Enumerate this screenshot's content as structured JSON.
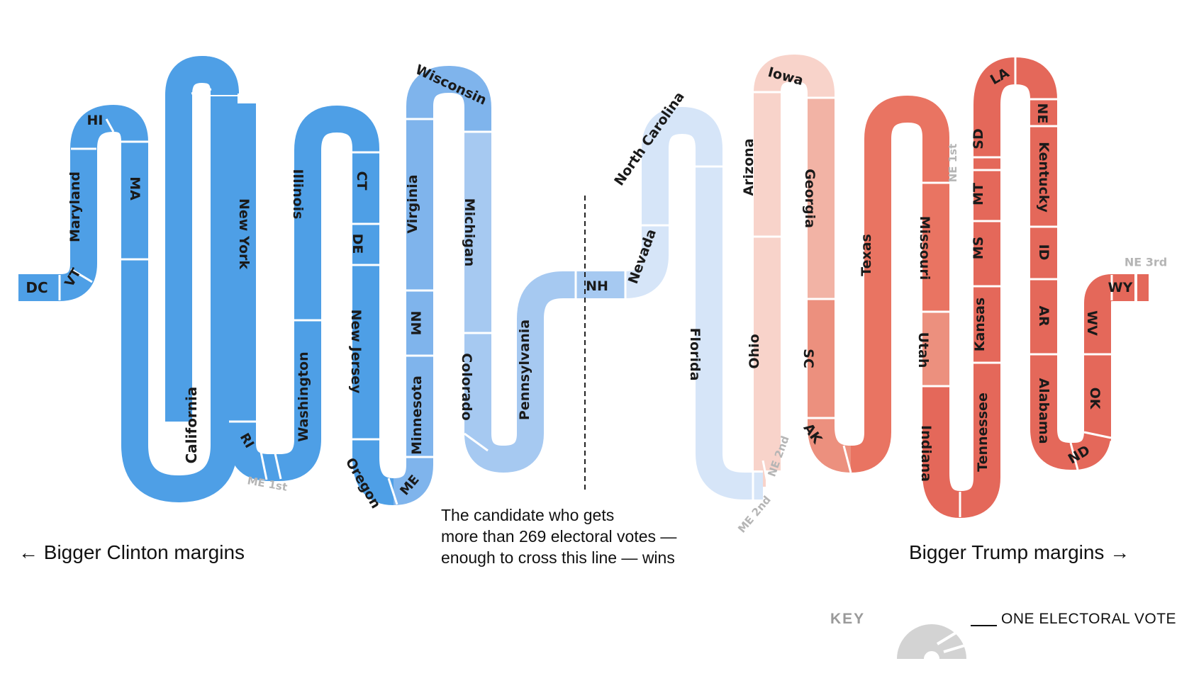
{
  "colors": {
    "clinton_dark": "#4e9fe6",
    "clinton_mid": "#7fb4ec",
    "clinton_light": "#a6c9f1",
    "clinton_pale": "#d6e5f8",
    "trump_pale": "#f8d3ca",
    "trump_light": "#f2b3a5",
    "trump_mid": "#ec907e",
    "trump_dark": "#e97462",
    "trump_deep": "#e4685a",
    "key_gray": "#d3d3d3",
    "ghost_label": "#b5b5b5"
  },
  "segments": [
    {
      "id": "dc",
      "label": "DC",
      "group": "clinton_dark"
    },
    {
      "id": "vt",
      "label": "VT",
      "group": "clinton_dark"
    },
    {
      "id": "md",
      "label": "Maryland",
      "group": "clinton_dark"
    },
    {
      "id": "hi",
      "label": "HI",
      "group": "clinton_dark"
    },
    {
      "id": "ma",
      "label": "MA",
      "group": "clinton_dark"
    },
    {
      "id": "ca",
      "label": "California",
      "group": "clinton_dark"
    },
    {
      "id": "ny",
      "label": "New York",
      "group": "clinton_dark"
    },
    {
      "id": "ri",
      "label": "RI",
      "group": "clinton_dark"
    },
    {
      "id": "me1",
      "label": "ME 1st",
      "group": "clinton_dark"
    },
    {
      "id": "wa",
      "label": "Washington",
      "group": "clinton_dark"
    },
    {
      "id": "il",
      "label": "Illinois",
      "group": "clinton_dark"
    },
    {
      "id": "ct",
      "label": "CT",
      "group": "clinton_dark"
    },
    {
      "id": "de",
      "label": "DE",
      "group": "clinton_dark"
    },
    {
      "id": "nj",
      "label": "New Jersey",
      "group": "clinton_dark"
    },
    {
      "id": "or",
      "label": "Oregon",
      "group": "clinton_dark"
    },
    {
      "id": "me",
      "label": "ME",
      "group": "clinton_mid"
    },
    {
      "id": "mn",
      "label": "Minnesota",
      "group": "clinton_mid"
    },
    {
      "id": "nm",
      "label": "NM",
      "group": "clinton_mid"
    },
    {
      "id": "va",
      "label": "Virginia",
      "group": "clinton_mid"
    },
    {
      "id": "wi",
      "label": "Wisconsin",
      "group": "clinton_mid"
    },
    {
      "id": "mi",
      "label": "Michigan",
      "group": "clinton_light"
    },
    {
      "id": "co",
      "label": "Colorado",
      "group": "clinton_light"
    },
    {
      "id": "pa",
      "label": "Pennsylvania",
      "group": "clinton_light"
    },
    {
      "id": "nh",
      "label": "NH",
      "group": "clinton_light"
    },
    {
      "id": "nv",
      "label": "Nevada",
      "group": "clinton_pale"
    },
    {
      "id": "nc",
      "label": "North Carolina",
      "group": "clinton_pale"
    },
    {
      "id": "fl",
      "label": "Florida",
      "group": "clinton_pale"
    },
    {
      "id": "me2",
      "label": "ME 2nd",
      "group": "clinton_pale"
    },
    {
      "id": "ne2",
      "label": "NE 2nd",
      "group": "trump_pale"
    },
    {
      "id": "oh",
      "label": "Ohio",
      "group": "trump_pale"
    },
    {
      "id": "az",
      "label": "Arizona",
      "group": "trump_pale"
    },
    {
      "id": "ia",
      "label": "Iowa",
      "group": "trump_pale"
    },
    {
      "id": "ga",
      "label": "Georgia",
      "group": "trump_light"
    },
    {
      "id": "sc",
      "label": "SC",
      "group": "trump_mid"
    },
    {
      "id": "ak",
      "label": "AK",
      "group": "trump_mid"
    },
    {
      "id": "tx",
      "label": "Texas",
      "group": "trump_dark"
    },
    {
      "id": "mo",
      "label": "Missouri",
      "group": "trump_dark"
    },
    {
      "id": "ut",
      "label": "Utah",
      "group": "trump_mid"
    },
    {
      "id": "in",
      "label": "Indiana",
      "group": "trump_deep"
    },
    {
      "id": "tn",
      "label": "Tennessee",
      "group": "trump_deep"
    },
    {
      "id": "ks",
      "label": "Kansas",
      "group": "trump_deep"
    },
    {
      "id": "ms",
      "label": "MS",
      "group": "trump_deep"
    },
    {
      "id": "mt",
      "label": "MT",
      "group": "trump_deep"
    },
    {
      "id": "ne1",
      "label": "NE 1st",
      "group": "trump_deep"
    },
    {
      "id": "sd",
      "label": "SD",
      "group": "trump_deep"
    },
    {
      "id": "la",
      "label": "LA",
      "group": "trump_deep"
    },
    {
      "id": "ne",
      "label": "NE",
      "group": "trump_deep"
    },
    {
      "id": "ky",
      "label": "Kentucky",
      "group": "trump_deep"
    },
    {
      "id": "id",
      "label": "ID",
      "group": "trump_deep"
    },
    {
      "id": "ar",
      "label": "AR",
      "group": "trump_deep"
    },
    {
      "id": "al",
      "label": "Alabama",
      "group": "trump_deep"
    },
    {
      "id": "nd",
      "label": "ND",
      "group": "trump_deep"
    },
    {
      "id": "ok",
      "label": "OK",
      "group": "trump_deep"
    },
    {
      "id": "wv",
      "label": "WV",
      "group": "trump_deep"
    },
    {
      "id": "wy",
      "label": "WY",
      "group": "trump_deep"
    },
    {
      "id": "ne3",
      "label": "NE 3rd",
      "group": "trump_deep"
    }
  ],
  "captions": {
    "left": "← Bigger Clinton margins",
    "right": "Bigger Trump margins →",
    "middle_lines": [
      "The candidate who gets",
      "more than 269 electoral votes —",
      "enough to cross this line — wins"
    ]
  },
  "key": {
    "title": "KEY",
    "label": "ONE ELECTORAL VOTE"
  }
}
